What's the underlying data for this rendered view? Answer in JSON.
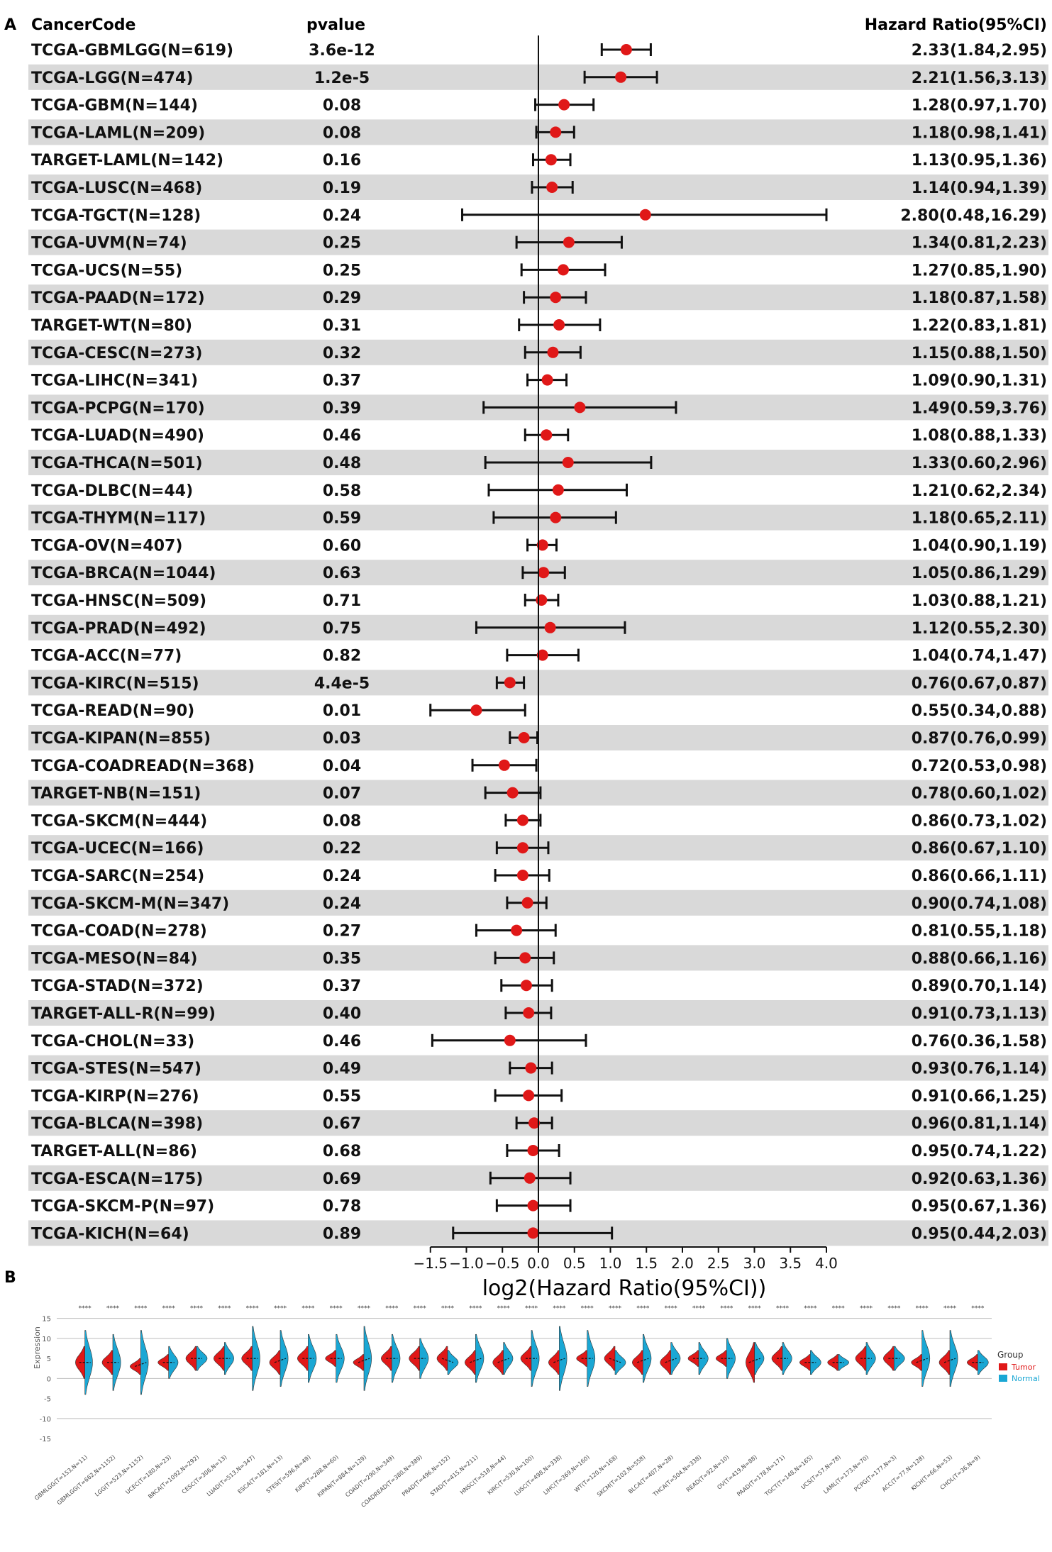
{
  "panel_a_label": "A",
  "panel_b_label": "B",
  "chart_data": [
    {
      "type": "forest",
      "headers": {
        "code": "CancerCode",
        "pvalue": "pvalue",
        "hr": "Hazard Ratio(95%CI)"
      },
      "xlabel": "log2(Hazard Ratio(95%CI))",
      "xticks": [
        "−1.5",
        "−1.0",
        "−0.5",
        "0.0",
        "0.5",
        "1.0",
        "1.5",
        "2.0",
        "2.5",
        "3.0",
        "3.5",
        "4.0"
      ],
      "xtick_values": [
        -1.5,
        -1.0,
        -0.5,
        0.0,
        0.5,
        1.0,
        1.5,
        2.0,
        2.5,
        3.0,
        3.5,
        4.0
      ],
      "xlim": [
        -1.5,
        4.0
      ],
      "point_color": "#e01818",
      "stripe_color": "#d9d9d9",
      "rows": [
        {
          "code": "TCGA-GBMLGG(N=619)",
          "pvalue": "3.6e-12",
          "hr": "2.33(1.84,2.95)",
          "est": 2.33,
          "lo": 1.84,
          "hi": 2.95
        },
        {
          "code": "TCGA-LGG(N=474)",
          "pvalue": "1.2e-5",
          "hr": "2.21(1.56,3.13)",
          "est": 2.21,
          "lo": 1.56,
          "hi": 3.13
        },
        {
          "code": "TCGA-GBM(N=144)",
          "pvalue": "0.08",
          "hr": "1.28(0.97,1.70)",
          "est": 1.28,
          "lo": 0.97,
          "hi": 1.7
        },
        {
          "code": "TCGA-LAML(N=209)",
          "pvalue": "0.08",
          "hr": "1.18(0.98,1.41)",
          "est": 1.18,
          "lo": 0.98,
          "hi": 1.41
        },
        {
          "code": "TARGET-LAML(N=142)",
          "pvalue": "0.16",
          "hr": "1.13(0.95,1.36)",
          "est": 1.13,
          "lo": 0.95,
          "hi": 1.36
        },
        {
          "code": "TCGA-LUSC(N=468)",
          "pvalue": "0.19",
          "hr": "1.14(0.94,1.39)",
          "est": 1.14,
          "lo": 0.94,
          "hi": 1.39
        },
        {
          "code": "TCGA-TGCT(N=128)",
          "pvalue": "0.24",
          "hr": "2.80(0.48,16.29)",
          "est": 2.8,
          "lo": 0.48,
          "hi": 16.29
        },
        {
          "code": "TCGA-UVM(N=74)",
          "pvalue": "0.25",
          "hr": "1.34(0.81,2.23)",
          "est": 1.34,
          "lo": 0.81,
          "hi": 2.23
        },
        {
          "code": "TCGA-UCS(N=55)",
          "pvalue": "0.25",
          "hr": "1.27(0.85,1.90)",
          "est": 1.27,
          "lo": 0.85,
          "hi": 1.9
        },
        {
          "code": "TCGA-PAAD(N=172)",
          "pvalue": "0.29",
          "hr": "1.18(0.87,1.58)",
          "est": 1.18,
          "lo": 0.87,
          "hi": 1.58
        },
        {
          "code": "TARGET-WT(N=80)",
          "pvalue": "0.31",
          "hr": "1.22(0.83,1.81)",
          "est": 1.22,
          "lo": 0.83,
          "hi": 1.81
        },
        {
          "code": "TCGA-CESC(N=273)",
          "pvalue": "0.32",
          "hr": "1.15(0.88,1.50)",
          "est": 1.15,
          "lo": 0.88,
          "hi": 1.5
        },
        {
          "code": "TCGA-LIHC(N=341)",
          "pvalue": "0.37",
          "hr": "1.09(0.90,1.31)",
          "est": 1.09,
          "lo": 0.9,
          "hi": 1.31
        },
        {
          "code": "TCGA-PCPG(N=170)",
          "pvalue": "0.39",
          "hr": "1.49(0.59,3.76)",
          "est": 1.49,
          "lo": 0.59,
          "hi": 3.76
        },
        {
          "code": "TCGA-LUAD(N=490)",
          "pvalue": "0.46",
          "hr": "1.08(0.88,1.33)",
          "est": 1.08,
          "lo": 0.88,
          "hi": 1.33
        },
        {
          "code": "TCGA-THCA(N=501)",
          "pvalue": "0.48",
          "hr": "1.33(0.60,2.96)",
          "est": 1.33,
          "lo": 0.6,
          "hi": 2.96
        },
        {
          "code": "TCGA-DLBC(N=44)",
          "pvalue": "0.58",
          "hr": "1.21(0.62,2.34)",
          "est": 1.21,
          "lo": 0.62,
          "hi": 2.34
        },
        {
          "code": "TCGA-THYM(N=117)",
          "pvalue": "0.59",
          "hr": "1.18(0.65,2.11)",
          "est": 1.18,
          "lo": 0.65,
          "hi": 2.11
        },
        {
          "code": "TCGA-OV(N=407)",
          "pvalue": "0.60",
          "hr": "1.04(0.90,1.19)",
          "est": 1.04,
          "lo": 0.9,
          "hi": 1.19
        },
        {
          "code": "TCGA-BRCA(N=1044)",
          "pvalue": "0.63",
          "hr": "1.05(0.86,1.29)",
          "est": 1.05,
          "lo": 0.86,
          "hi": 1.29
        },
        {
          "code": "TCGA-HNSC(N=509)",
          "pvalue": "0.71",
          "hr": "1.03(0.88,1.21)",
          "est": 1.03,
          "lo": 0.88,
          "hi": 1.21
        },
        {
          "code": "TCGA-PRAD(N=492)",
          "pvalue": "0.75",
          "hr": "1.12(0.55,2.30)",
          "est": 1.12,
          "lo": 0.55,
          "hi": 2.3
        },
        {
          "code": "TCGA-ACC(N=77)",
          "pvalue": "0.82",
          "hr": "1.04(0.74,1.47)",
          "est": 1.04,
          "lo": 0.74,
          "hi": 1.47
        },
        {
          "code": "TCGA-KIRC(N=515)",
          "pvalue": "4.4e-5",
          "hr": "0.76(0.67,0.87)",
          "est": 0.76,
          "lo": 0.67,
          "hi": 0.87
        },
        {
          "code": "TCGA-READ(N=90)",
          "pvalue": "0.01",
          "hr": "0.55(0.34,0.88)",
          "est": 0.55,
          "lo": 0.34,
          "hi": 0.88
        },
        {
          "code": "TCGA-KIPAN(N=855)",
          "pvalue": "0.03",
          "hr": "0.87(0.76,0.99)",
          "est": 0.87,
          "lo": 0.76,
          "hi": 0.99
        },
        {
          "code": "TCGA-COADREAD(N=368)",
          "pvalue": "0.04",
          "hr": "0.72(0.53,0.98)",
          "est": 0.72,
          "lo": 0.53,
          "hi": 0.98
        },
        {
          "code": "TARGET-NB(N=151)",
          "pvalue": "0.07",
          "hr": "0.78(0.60,1.02)",
          "est": 0.78,
          "lo": 0.6,
          "hi": 1.02
        },
        {
          "code": "TCGA-SKCM(N=444)",
          "pvalue": "0.08",
          "hr": "0.86(0.73,1.02)",
          "est": 0.86,
          "lo": 0.73,
          "hi": 1.02
        },
        {
          "code": "TCGA-UCEC(N=166)",
          "pvalue": "0.22",
          "hr": "0.86(0.67,1.10)",
          "est": 0.86,
          "lo": 0.67,
          "hi": 1.1
        },
        {
          "code": "TCGA-SARC(N=254)",
          "pvalue": "0.24",
          "hr": "0.86(0.66,1.11)",
          "est": 0.86,
          "lo": 0.66,
          "hi": 1.11
        },
        {
          "code": "TCGA-SKCM-M(N=347)",
          "pvalue": "0.24",
          "hr": "0.90(0.74,1.08)",
          "est": 0.9,
          "lo": 0.74,
          "hi": 1.08
        },
        {
          "code": "TCGA-COAD(N=278)",
          "pvalue": "0.27",
          "hr": "0.81(0.55,1.18)",
          "est": 0.81,
          "lo": 0.55,
          "hi": 1.18
        },
        {
          "code": "TCGA-MESO(N=84)",
          "pvalue": "0.35",
          "hr": "0.88(0.66,1.16)",
          "est": 0.88,
          "lo": 0.66,
          "hi": 1.16
        },
        {
          "code": "TCGA-STAD(N=372)",
          "pvalue": "0.37",
          "hr": "0.89(0.70,1.14)",
          "est": 0.89,
          "lo": 0.7,
          "hi": 1.14
        },
        {
          "code": "TARGET-ALL-R(N=99)",
          "pvalue": "0.40",
          "hr": "0.91(0.73,1.13)",
          "est": 0.91,
          "lo": 0.73,
          "hi": 1.13
        },
        {
          "code": "TCGA-CHOL(N=33)",
          "pvalue": "0.46",
          "hr": "0.76(0.36,1.58)",
          "est": 0.76,
          "lo": 0.36,
          "hi": 1.58
        },
        {
          "code": "TCGA-STES(N=547)",
          "pvalue": "0.49",
          "hr": "0.93(0.76,1.14)",
          "est": 0.93,
          "lo": 0.76,
          "hi": 1.14
        },
        {
          "code": "TCGA-KIRP(N=276)",
          "pvalue": "0.55",
          "hr": "0.91(0.66,1.25)",
          "est": 0.91,
          "lo": 0.66,
          "hi": 1.25
        },
        {
          "code": "TCGA-BLCA(N=398)",
          "pvalue": "0.67",
          "hr": "0.96(0.81,1.14)",
          "est": 0.96,
          "lo": 0.81,
          "hi": 1.14
        },
        {
          "code": "TARGET-ALL(N=86)",
          "pvalue": "0.68",
          "hr": "0.95(0.74,1.22)",
          "est": 0.95,
          "lo": 0.74,
          "hi": 1.22
        },
        {
          "code": "TCGA-ESCA(N=175)",
          "pvalue": "0.69",
          "hr": "0.92(0.63,1.36)",
          "est": 0.92,
          "lo": 0.63,
          "hi": 1.36
        },
        {
          "code": "TCGA-SKCM-P(N=97)",
          "pvalue": "0.78",
          "hr": "0.95(0.67,1.36)",
          "est": 0.95,
          "lo": 0.67,
          "hi": 1.36
        },
        {
          "code": "TCGA-KICH(N=64)",
          "pvalue": "0.89",
          "hr": "0.95(0.44,2.03)",
          "est": 0.95,
          "lo": 0.44,
          "hi": 2.03
        }
      ]
    },
    {
      "type": "split-violin",
      "ylabel": "Expression",
      "yticks": [
        "15",
        "10",
        "5",
        "0",
        "-5",
        "-10",
        "-15"
      ],
      "ytick_values": [
        15,
        10,
        5,
        0,
        -5,
        -10,
        -15
      ],
      "ylim": [
        -18,
        16
      ],
      "gridlines": [
        15,
        10,
        0,
        -10
      ],
      "legend": {
        "title": "Group",
        "items": [
          {
            "label": "Tumor",
            "color": "#e01818"
          },
          {
            "label": "Normal",
            "color": "#1aa7d4"
          }
        ]
      },
      "tumor_color": "#e01818",
      "normal_color": "#1aa7d4",
      "categories": [
        "GBMLGG(T=153,N=11)",
        "GBMLGG(T=662,N=1152)",
        "LGG(T=523,N=1152)",
        "UCEC(T=180,N=23)",
        "BRCA(T=1092,N=292)",
        "CESC(T=306,N=13)",
        "LUAD(T=513,N=347)",
        "ESCA(T=181,N=13)",
        "STES(T=596,N=49)",
        "KIRP(T=288,N=60)",
        "KIPAN(T=884,N=129)",
        "COAD(T=290,N=349)",
        "COADREAD(T=380,N=389)",
        "PRAD(T=496,N=152)",
        "STAD(T=415,N=211)",
        "HNSC(T=518,N=44)",
        "KIRC(T=530,N=100)",
        "LUSC(T=498,N=338)",
        "LIHC(T=369,N=160)",
        "WT(T=120,N=168)",
        "SKCM(T=102,N=558)",
        "BLCA(T=407,N=28)",
        "THCA(T=504,N=338)",
        "READ(T=92,N=10)",
        "OV(T=419,N=88)",
        "PAAD(T=178,N=171)",
        "TGCT(T=148,N=165)",
        "UCS(T=57,N=78)",
        "LAML(T=173,N=70)",
        "PCPG(T=177,N=3)",
        "ACC(T=77,N=128)",
        "KICH(T=66,N=53)",
        "CHOL(T=36,N=9)"
      ],
      "tumor": [
        {
          "mean": 4,
          "spread": 4
        },
        {
          "mean": 4,
          "spread": 3
        },
        {
          "mean": 3,
          "spread": 2
        },
        {
          "mean": 4,
          "spread": 2
        },
        {
          "mean": 5,
          "spread": 3
        },
        {
          "mean": 5,
          "spread": 3
        },
        {
          "mean": 5,
          "spread": 3
        },
        {
          "mean": 4,
          "spread": 3
        },
        {
          "mean": 5,
          "spread": 3
        },
        {
          "mean": 5,
          "spread": 2
        },
        {
          "mean": 4,
          "spread": 2
        },
        {
          "mean": 5,
          "spread": 3
        },
        {
          "mean": 5,
          "spread": 3
        },
        {
          "mean": 5,
          "spread": 3
        },
        {
          "mean": 4,
          "spread": 3
        },
        {
          "mean": 4,
          "spread": 3
        },
        {
          "mean": 5,
          "spread": 3
        },
        {
          "mean": 4,
          "spread": 3
        },
        {
          "mean": 5,
          "spread": 2
        },
        {
          "mean": 5,
          "spread": 3
        },
        {
          "mean": 4,
          "spread": 3
        },
        {
          "mean": 4,
          "spread": 3
        },
        {
          "mean": 5,
          "spread": 2
        },
        {
          "mean": 5,
          "spread": 2
        },
        {
          "mean": 4,
          "spread": 5
        },
        {
          "mean": 5,
          "spread": 3
        },
        {
          "mean": 4,
          "spread": 2
        },
        {
          "mean": 4,
          "spread": 2
        },
        {
          "mean": 5,
          "spread": 3
        },
        {
          "mean": 5,
          "spread": 3
        },
        {
          "mean": 4,
          "spread": 2
        },
        {
          "mean": 4,
          "spread": 3
        },
        {
          "mean": 4,
          "spread": 2
        }
      ],
      "normal": [
        {
          "mean": 4,
          "spread": 8
        },
        {
          "mean": 4,
          "spread": 7
        },
        {
          "mean": 4,
          "spread": 8
        },
        {
          "mean": 4,
          "spread": 4
        },
        {
          "mean": 5,
          "spread": 3
        },
        {
          "mean": 5,
          "spread": 4
        },
        {
          "mean": 5,
          "spread": 8
        },
        {
          "mean": 5,
          "spread": 7
        },
        {
          "mean": 5,
          "spread": 6
        },
        {
          "mean": 5,
          "spread": 6
        },
        {
          "mean": 5,
          "spread": 8
        },
        {
          "mean": 5,
          "spread": 6
        },
        {
          "mean": 5,
          "spread": 5
        },
        {
          "mean": 4,
          "spread": 3
        },
        {
          "mean": 5,
          "spread": 6
        },
        {
          "mean": 5,
          "spread": 4
        },
        {
          "mean": 5,
          "spread": 7
        },
        {
          "mean": 5,
          "spread": 8
        },
        {
          "mean": 5,
          "spread": 7
        },
        {
          "mean": 4,
          "spread": 3
        },
        {
          "mean": 5,
          "spread": 6
        },
        {
          "mean": 5,
          "spread": 4
        },
        {
          "mean": 5,
          "spread": 4
        },
        {
          "mean": 5,
          "spread": 5
        },
        {
          "mean": 5,
          "spread": 4
        },
        {
          "mean": 5,
          "spread": 4
        },
        {
          "mean": 4,
          "spread": 3
        },
        {
          "mean": 4,
          "spread": 2
        },
        {
          "mean": 5,
          "spread": 4
        },
        {
          "mean": 5,
          "spread": 3
        },
        {
          "mean": 5,
          "spread": 7
        },
        {
          "mean": 5,
          "spread": 7
        },
        {
          "mean": 4,
          "spread": 3
        }
      ],
      "significance": [
        "****",
        "****",
        "****",
        "****",
        "****",
        "****",
        "****",
        "****",
        "****",
        "****",
        "****",
        "****",
        "****",
        "****",
        "****",
        "****",
        "****",
        "****",
        "****",
        "****",
        "****",
        "****",
        "****",
        "****",
        "****",
        "****",
        "****",
        "****",
        "****",
        "****",
        "****",
        "****",
        "****"
      ]
    }
  ]
}
